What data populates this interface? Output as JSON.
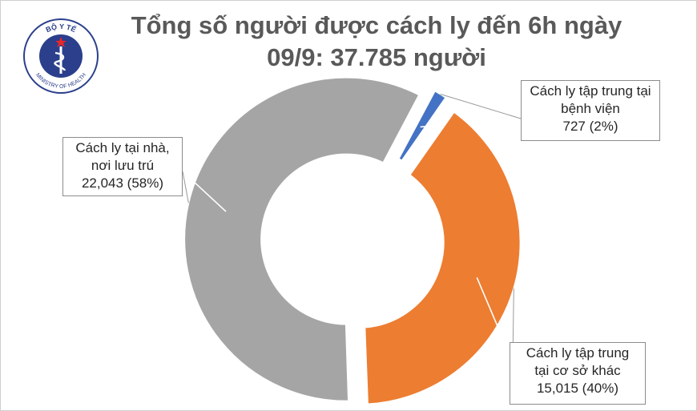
{
  "logo": {
    "top_text": "BỘ Y TẾ",
    "bottom_text": "MINISTRY OF HEALTH",
    "icon": "caduceus-star-icon"
  },
  "title": {
    "line1": "Tổng số người được cách ly đến 6h ngày",
    "line2": "09/9: 37.785 người"
  },
  "chart_data": {
    "type": "pie",
    "variant": "donut-exploded",
    "title": "Tổng số người được cách ly đến 6h ngày 09/9: 37.785 người",
    "total": 37785,
    "slices": [
      {
        "label_lines": [
          "Cách ly tập trung tại",
          "bệnh viện",
          "727 (2%)"
        ],
        "value": 727,
        "percent": 2,
        "color": "#4472c4"
      },
      {
        "label_lines": [
          "Cách ly tập trung",
          "tại cơ sở khác",
          "15,015 (40%)"
        ],
        "value": 15015,
        "percent": 40,
        "color": "#ed7d31"
      },
      {
        "label_lines": [
          "Cách ly tại nhà,",
          "nơi lưu trú",
          "22,043 (58%)"
        ],
        "value": 22043,
        "percent": 58,
        "color": "#a5a5a5"
      }
    ]
  }
}
